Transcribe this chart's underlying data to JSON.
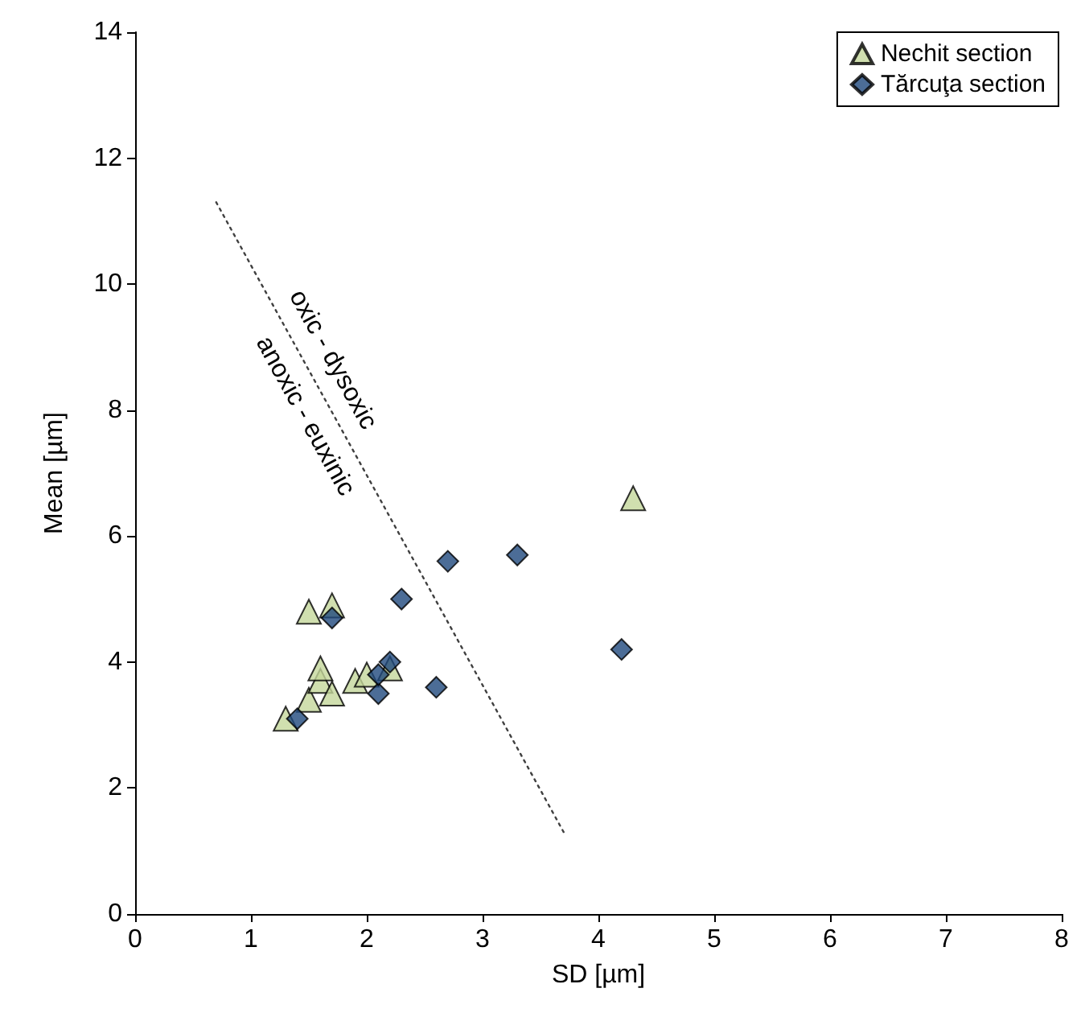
{
  "chart_data": {
    "type": "scatter",
    "xlabel": "SD [µm]",
    "ylabel": "Mean [µm]",
    "xlim": [
      0,
      8
    ],
    "xticks": [
      0,
      1,
      2,
      3,
      4,
      5,
      6,
      7,
      8
    ],
    "ylim": [
      0,
      14
    ],
    "yticks": [
      0,
      2,
      4,
      6,
      8,
      10,
      12,
      14
    ],
    "grid": false,
    "legend": "top right",
    "series": [
      {
        "name": "Nechit section",
        "color": "#c4d79b",
        "marker": "triangle",
        "x": [
          1.3,
          1.5,
          1.6,
          1.6,
          1.7,
          1.5,
          1.7,
          1.9,
          2.0,
          2.2,
          4.3
        ],
        "values": [
          3.1,
          3.4,
          3.7,
          3.9,
          3.5,
          4.8,
          4.9,
          3.7,
          3.8,
          3.9,
          6.6
        ]
      },
      {
        "name": "Tărcuţa section",
        "color": "#1f497d",
        "marker": "diamond",
        "x": [
          1.4,
          1.7,
          2.1,
          2.1,
          2.2,
          2.3,
          2.6,
          2.7,
          3.3,
          4.2
        ],
        "values": [
          3.1,
          4.7,
          3.5,
          3.8,
          4.0,
          5.0,
          3.6,
          5.6,
          5.7,
          4.2
        ]
      },
      {
        "type": "line",
        "color": "#404040",
        "marker": "none",
        "line_style": "dotted",
        "x": [
          0.7,
          3.7
        ],
        "values": [
          11.3,
          1.3
        ]
      }
    ],
    "annotations": [
      "oxic - dysoxic",
      "anoxic - euxinic"
    ]
  }
}
